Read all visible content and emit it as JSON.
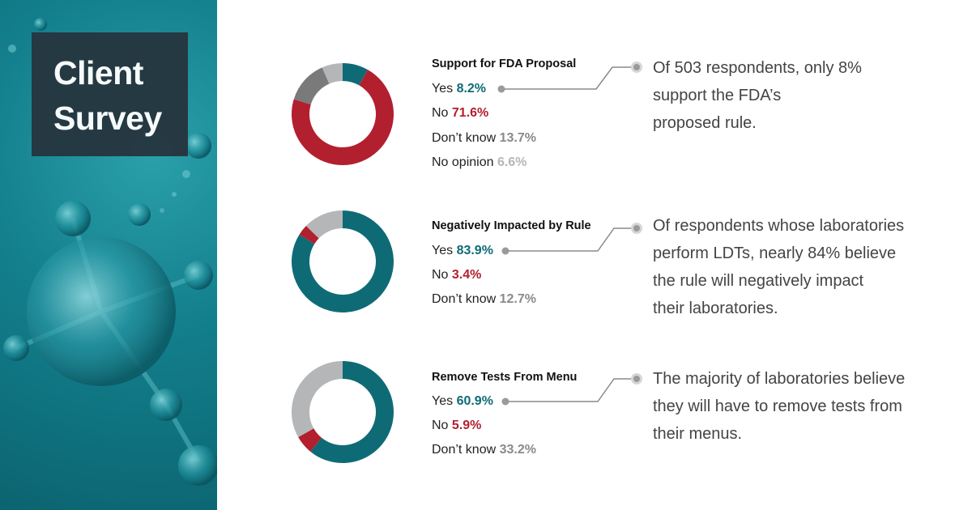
{
  "sidebar": {
    "title_line1": "Client",
    "title_line2": "Survey"
  },
  "colors": {
    "teal": "#0e6b76",
    "red": "#b21f2f",
    "dark_gray": "#7a7a7a",
    "light_gray": "#b5b6b8",
    "connector": "#8a8a8a"
  },
  "chart_data": [
    {
      "type": "pie",
      "title": "Support for FDA Proposal",
      "categories": [
        "Yes",
        "No",
        "Don’t know",
        "No opinion"
      ],
      "values": [
        8.2,
        71.6,
        13.7,
        6.6
      ],
      "value_labels": [
        "8.2%",
        "71.6%",
        "13.7%",
        "6.6%"
      ],
      "slice_colors": [
        "#0e6b76",
        "#b21f2f",
        "#7a7a7a",
        "#b5b6b8"
      ],
      "label_colors": [
        "#0e6b76",
        "#b21f2f",
        "#8a8a8a",
        "#b5b6b8"
      ],
      "annotation": "Of 503 respondents, only 8% support the FDA’s proposed rule.",
      "annotation_lines": [
        "Of 503 respondents, only 8%",
        "support the FDA’s",
        "proposed rule."
      ]
    },
    {
      "type": "pie",
      "title": "Negatively Impacted by Rule",
      "categories": [
        "Yes",
        "No",
        "Don’t know"
      ],
      "values": [
        83.9,
        3.4,
        12.7
      ],
      "value_labels": [
        "83.9%",
        "3.4%",
        "12.7%"
      ],
      "slice_colors": [
        "#0e6b76",
        "#b21f2f",
        "#b5b6b8"
      ],
      "label_colors": [
        "#0e6b76",
        "#b21f2f",
        "#8a8a8a"
      ],
      "annotation": "Of respondents whose laboratories perform LDTs, nearly 84% believe the rule will negatively impact their laboratories.",
      "annotation_lines": [
        "Of respondents whose laboratories",
        "perform LDTs, nearly 84% believe",
        "the rule will negatively impact",
        "their laboratories."
      ]
    },
    {
      "type": "pie",
      "title": "Remove Tests From Menu",
      "categories": [
        "Yes",
        "No",
        "Don’t know"
      ],
      "values": [
        60.9,
        5.9,
        33.2
      ],
      "value_labels": [
        "60.9%",
        "5.9%",
        "33.2%"
      ],
      "slice_colors": [
        "#0e6b76",
        "#b21f2f",
        "#b5b6b8"
      ],
      "label_colors": [
        "#0e6b76",
        "#b21f2f",
        "#8a8a8a"
      ],
      "annotation": "The majority of laboratories believe they will have to remove tests from their menus.",
      "annotation_lines": [
        "The majority of laboratories believe",
        "they will have to remove tests from",
        "their menus."
      ]
    }
  ]
}
